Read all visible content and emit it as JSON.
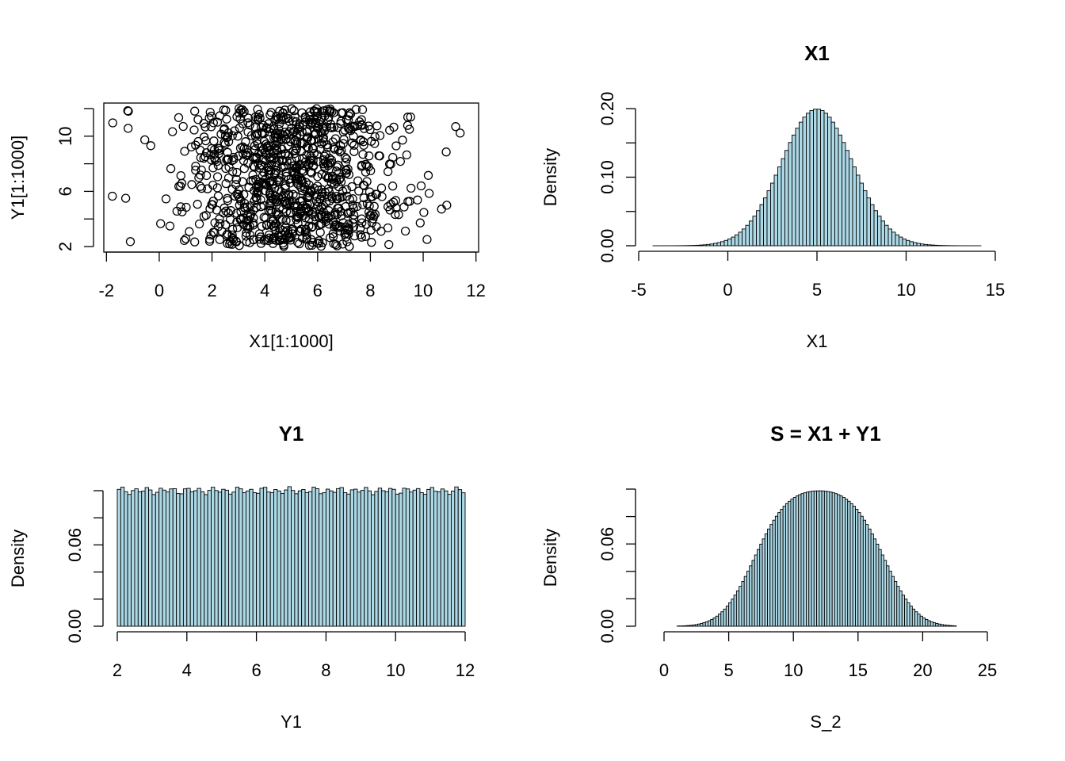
{
  "colors": {
    "bar_fill": "#add8e6",
    "stroke": "#000000",
    "background": "#ffffff"
  },
  "chart_data": [
    {
      "type": "scatter",
      "title": "",
      "xlabel": "X1[1:1000]",
      "ylabel": "Y1[1:1000]",
      "xlim": [
        -2.1,
        12.1
      ],
      "ylim": [
        1.6,
        12.4
      ],
      "xticks": [
        -2,
        0,
        2,
        4,
        6,
        8,
        10,
        12
      ],
      "xtick_labels": [
        "-2",
        "0",
        "2",
        "4",
        "6",
        "8",
        "10",
        "12"
      ],
      "yticks": [
        2,
        4,
        6,
        8,
        10,
        12
      ],
      "ytick_labels": [
        "2",
        "",
        "6",
        "",
        "10",
        ""
      ],
      "n_points": 1000,
      "x_distribution": {
        "dist": "normal",
        "mean": 5,
        "sd": 2
      },
      "y_distribution": {
        "dist": "uniform",
        "min": 2,
        "max": 12
      },
      "marker": "open-circle"
    },
    {
      "type": "bar",
      "title": "X1",
      "xlabel": "X1",
      "ylabel": "Density",
      "xlim": [
        -5,
        15
      ],
      "ylim": [
        0,
        0.2
      ],
      "xticks": [
        -5,
        0,
        5,
        10,
        15
      ],
      "xtick_labels": [
        "-5",
        "0",
        "5",
        "10",
        "15"
      ],
      "yticks": [
        0,
        0.05,
        0.1,
        0.15,
        0.2
      ],
      "ytick_labels": [
        "0.00",
        "",
        "0.10",
        "",
        "0.20"
      ],
      "bins": {
        "start": -4.4,
        "end": 15,
        "width": 0.2
      },
      "density": {
        "dist": "normal",
        "mean": 5,
        "sd": 2
      }
    },
    {
      "type": "bar",
      "title": "Y1",
      "xlabel": "Y1",
      "ylabel": "Density",
      "xlim": [
        2,
        12
      ],
      "ylim": [
        0,
        0.1
      ],
      "xticks": [
        2,
        4,
        6,
        8,
        10,
        12
      ],
      "xtick_labels": [
        "2",
        "4",
        "6",
        "8",
        "10",
        "12"
      ],
      "yticks": [
        0,
        0.02,
        0.04,
        0.06,
        0.08,
        0.1
      ],
      "ytick_labels": [
        "0.00",
        "",
        "",
        "0.06",
        "",
        ""
      ],
      "bins": {
        "start": 2,
        "end": 12,
        "width": 0.1
      },
      "density": {
        "dist": "uniform",
        "min": 2,
        "max": 12
      }
    },
    {
      "type": "bar",
      "title": "S = X1 + Y1",
      "xlabel": "S_2",
      "ylabel": "Density",
      "xlim": [
        0,
        25
      ],
      "ylim": [
        0,
        0.1
      ],
      "xticks": [
        0,
        5,
        10,
        15,
        20,
        25
      ],
      "xtick_labels": [
        "0",
        "5",
        "10",
        "15",
        "20",
        "25"
      ],
      "yticks": [
        0,
        0.02,
        0.04,
        0.06,
        0.08,
        0.1
      ],
      "ytick_labels": [
        "0.00",
        "",
        "",
        "0.06",
        "",
        ""
      ],
      "bins": {
        "start": 1,
        "end": 22.6,
        "width": 0.2
      },
      "density": {
        "dist": "normal-plus-uniform",
        "mean": 5,
        "sd": 2,
        "min": 2,
        "max": 12
      }
    }
  ]
}
